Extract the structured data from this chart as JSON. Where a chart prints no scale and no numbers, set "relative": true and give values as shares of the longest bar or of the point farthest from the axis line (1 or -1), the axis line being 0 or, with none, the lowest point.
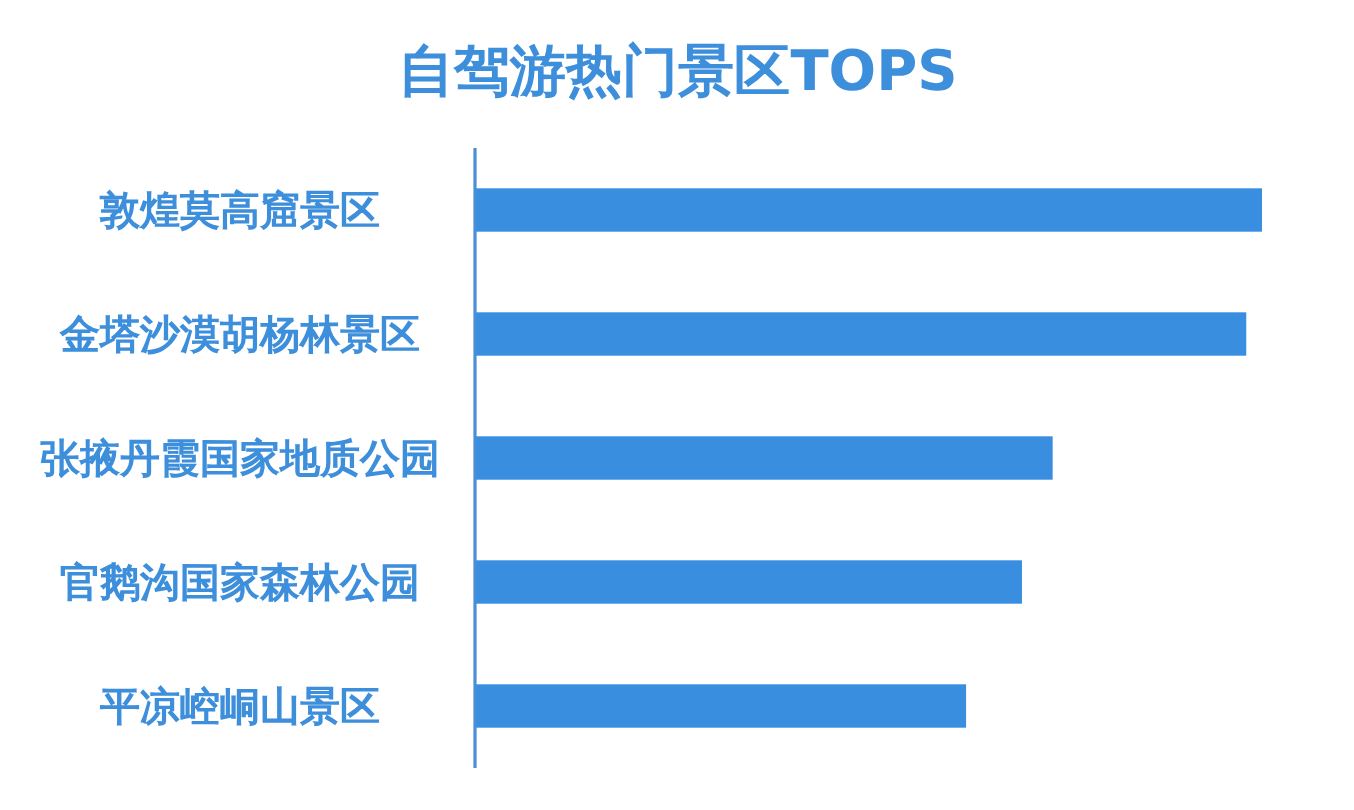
{
  "chart_data": {
    "type": "bar",
    "orientation": "horizontal",
    "relative": true,
    "title": "自驾游热门景区TOPS",
    "categories": [
      "敦煌莫高窟景区",
      "金塔沙漠胡杨林景区",
      "张掖丹霞国家地质公园",
      "官鹅沟国家森林公园",
      "平凉崆峒山景区"
    ],
    "values": [
      1,
      0.98,
      0.734,
      0.695,
      0.624
    ],
    "color": "#3a8ee0"
  }
}
